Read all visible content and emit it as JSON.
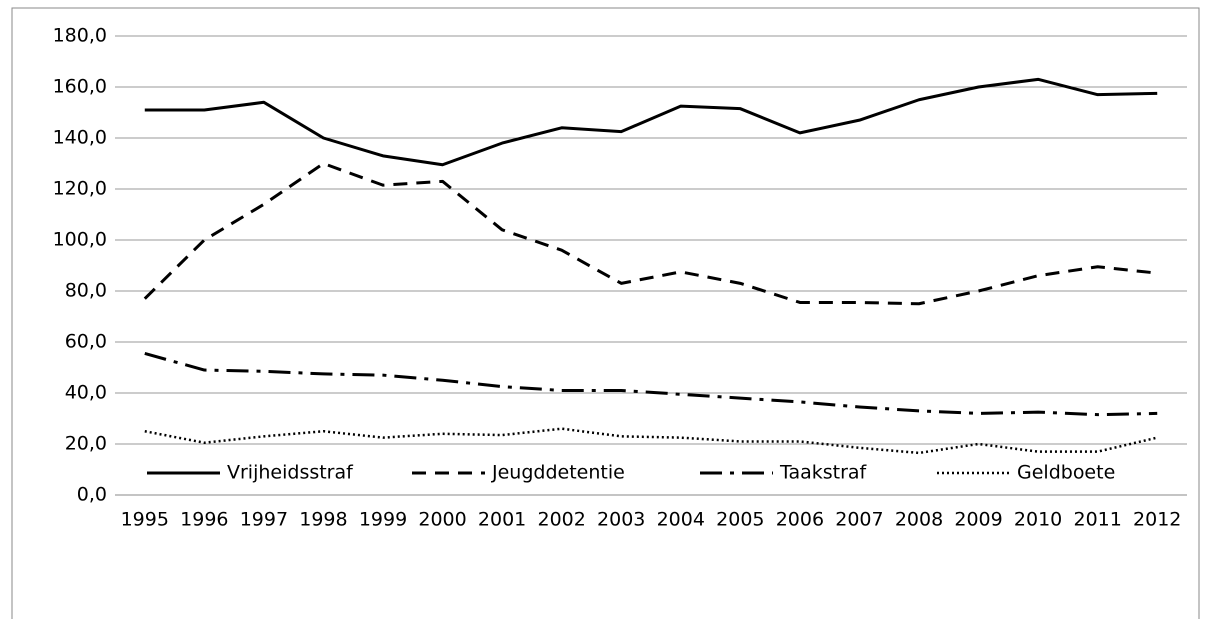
{
  "chart_data": {
    "type": "line",
    "categories": [
      "1995",
      "1996",
      "1997",
      "1998",
      "1999",
      "2000",
      "2001",
      "2002",
      "2003",
      "2004",
      "2005",
      "2006",
      "2007",
      "2008",
      "2009",
      "2010",
      "2011",
      "2012"
    ],
    "series": [
      {
        "name": "Vrijheidsstraf",
        "color": "#000000",
        "dash": "none",
        "values": [
          151,
          151,
          154,
          140,
          133,
          129.5,
          138,
          144,
          142.5,
          152.5,
          151.5,
          142,
          147,
          155,
          160,
          163,
          157,
          157.5
        ]
      },
      {
        "name": "Jeugddetentie",
        "color": "#000000",
        "dash": "14 9",
        "values": [
          77,
          100,
          114,
          130,
          121.5,
          123,
          104,
          96,
          83,
          87.5,
          83,
          75.5,
          75.5,
          75,
          80,
          86,
          89.5,
          87
        ]
      },
      {
        "name": "Taakstraf",
        "color": "#000000",
        "dash": "22 8 4 8",
        "values": [
          55.5,
          49,
          48.5,
          47.5,
          47,
          45,
          42.5,
          41,
          41,
          39.5,
          38,
          36.5,
          34.5,
          33,
          32,
          32.5,
          31.5,
          32
        ]
      },
      {
        "name": "Geldboete",
        "color": "#000000",
        "dash": "2 3",
        "values": [
          25,
          20.5,
          23,
          25,
          22.5,
          24,
          23.5,
          26,
          23,
          22.5,
          21,
          21,
          18.5,
          16.5,
          20,
          17,
          17,
          22.5
        ]
      }
    ],
    "ylim": [
      0,
      180
    ],
    "yticks": [
      {
        "value": 0,
        "label": "0,0"
      },
      {
        "value": 20,
        "label": "20,0"
      },
      {
        "value": 40,
        "label": "40,0"
      },
      {
        "value": 60,
        "label": "60,0"
      },
      {
        "value": 80,
        "label": "80,0"
      },
      {
        "value": 100,
        "label": "100,0"
      },
      {
        "value": 120,
        "label": "120,0"
      },
      {
        "value": 140,
        "label": "140,0"
      },
      {
        "value": 160,
        "label": "160,0"
      },
      {
        "value": 180,
        "label": "180,0"
      }
    ],
    "grid": true,
    "legend": "bottom"
  }
}
